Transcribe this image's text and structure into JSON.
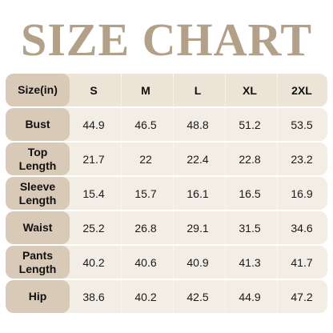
{
  "title": "SIZE CHART",
  "header": {
    "label": "Size(in)",
    "sizes": [
      "S",
      "M",
      "L",
      "XL",
      "2XL"
    ]
  },
  "rows": [
    {
      "label": "Bust",
      "values": [
        "44.9",
        "46.5",
        "48.8",
        "51.2",
        "53.5"
      ]
    },
    {
      "label": "Top Length",
      "values": [
        "21.7",
        "22",
        "22.4",
        "22.8",
        "23.2"
      ]
    },
    {
      "label": "Sleeve Length",
      "values": [
        "15.4",
        "15.7",
        "16.1",
        "16.5",
        "16.9"
      ]
    },
    {
      "label": "Waist",
      "values": [
        "25.2",
        "26.8",
        "29.1",
        "31.5",
        "34.6"
      ]
    },
    {
      "label": "Pants Length",
      "values": [
        "40.2",
        "40.6",
        "40.9",
        "41.3",
        "41.7"
      ]
    },
    {
      "label": "Hip",
      "values": [
        "38.6",
        "40.2",
        "42.5",
        "44.9",
        "47.2"
      ]
    }
  ],
  "colors": {
    "title": "#b3a089",
    "label_cell": "#d8cab7",
    "row_background": "#f2ede5"
  }
}
